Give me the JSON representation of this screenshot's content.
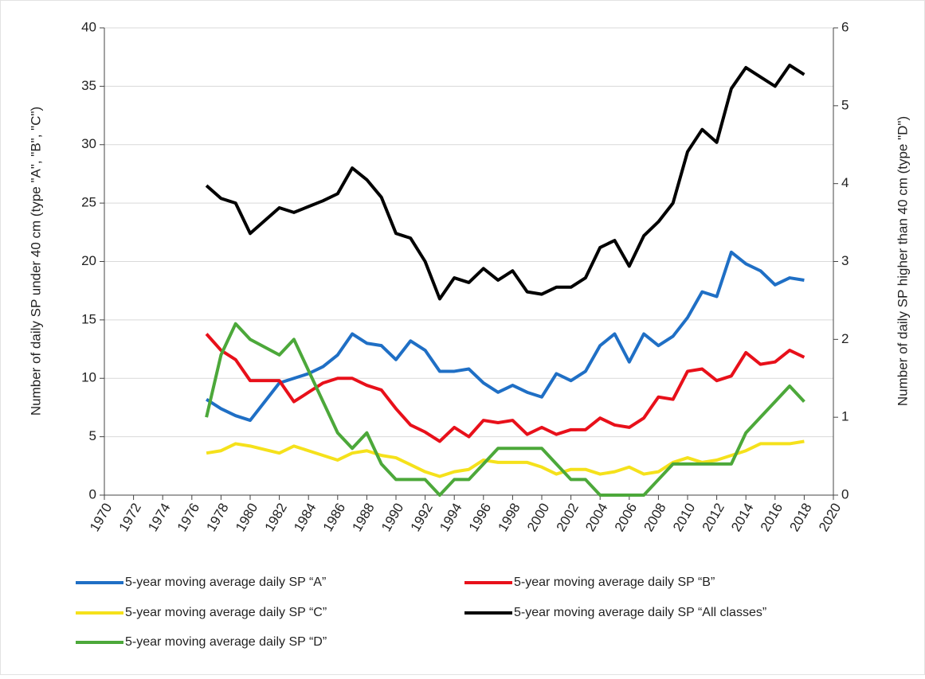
{
  "chart_data": {
    "type": "line",
    "y_label": "Number of daily SP under 40 cm (type \"A\", \"B\", \"C\")",
    "y2_label": "Number of daily SP higher than 40 cm (type \"D\")",
    "x": [
      1977,
      1978,
      1979,
      1980,
      1981,
      1982,
      1983,
      1984,
      1985,
      1986,
      1987,
      1988,
      1989,
      1990,
      1991,
      1992,
      1993,
      1994,
      1995,
      1996,
      1997,
      1998,
      1999,
      2000,
      2001,
      2002,
      2003,
      2004,
      2005,
      2006,
      2007,
      2008,
      2009,
      2010,
      2011,
      2012,
      2013,
      2014,
      2015,
      2016,
      2017,
      2018
    ],
    "xlim": [
      1970,
      2020
    ],
    "xticks": [
      1970,
      1972,
      1974,
      1976,
      1978,
      1980,
      1982,
      1984,
      1986,
      1988,
      1990,
      1992,
      1994,
      1996,
      1998,
      2000,
      2002,
      2004,
      2006,
      2008,
      2010,
      2012,
      2014,
      2016,
      2018,
      2020
    ],
    "ylim": [
      0,
      40
    ],
    "yticks": [
      0,
      5,
      10,
      15,
      20,
      25,
      30,
      35,
      40
    ],
    "y2lim": [
      0,
      6
    ],
    "y2ticks": [
      0,
      1,
      2,
      3,
      4,
      5,
      6
    ],
    "grid": true,
    "series": [
      {
        "name": "5-year moving average daily SP “A”",
        "color": "#1f6fc5",
        "values": [
          8.2,
          7.4,
          6.8,
          6.4,
          8,
          9.6,
          10,
          10.4,
          11,
          12,
          13.8,
          13,
          12.8,
          11.6,
          13.2,
          12.4,
          10.6,
          10.6,
          10.8,
          9.6,
          8.8,
          9.4,
          8.8,
          8.4,
          10.4,
          9.8,
          10.6,
          12.8,
          13.8,
          11.4,
          13.8,
          12.8,
          13.6,
          15.2,
          17.4,
          17,
          20.8,
          19.8,
          19.2,
          18,
          18.6,
          18.4
        ]
      },
      {
        "name": "5-year moving average daily SP “B”",
        "color": "#e8101a",
        "values": [
          13.8,
          12.4,
          11.6,
          9.8,
          9.8,
          9.8,
          8,
          8.8,
          9.6,
          10,
          10,
          9.4,
          9,
          7.4,
          6,
          5.4,
          4.6,
          5.8,
          5,
          6.4,
          6.2,
          6.4,
          5.2,
          5.8,
          5.2,
          5.6,
          5.6,
          6.6,
          6,
          5.8,
          6.6,
          8.4,
          8.2,
          10.6,
          10.8,
          9.8,
          10.2,
          12.2,
          11.2,
          11.4,
          12.4,
          11.8
        ]
      },
      {
        "name": "5-year moving average daily SP “C”",
        "color": "#f5e11b",
        "values": [
          3.6,
          3.8,
          4.4,
          4.2,
          3.9,
          3.6,
          4.2,
          3.8,
          3.4,
          3,
          3.6,
          3.8,
          3.4,
          3.2,
          2.6,
          2,
          1.6,
          2,
          2.2,
          3,
          2.8,
          2.8,
          2.8,
          2.4,
          1.8,
          2.2,
          2.2,
          1.8,
          2,
          2.4,
          1.8,
          2,
          2.8,
          3.2,
          2.8,
          3,
          3.4,
          3.8,
          4.4,
          4.4,
          4.4,
          4.6
        ]
      },
      {
        "name": "5-year moving average daily SP “All classes”",
        "color": "#000000",
        "values": [
          26.5,
          25.4,
          25,
          22.4,
          23.5,
          24.6,
          24.2,
          24.7,
          25.2,
          25.8,
          28,
          27,
          25.5,
          22.4,
          22,
          20,
          16.8,
          18.6,
          18.2,
          19.4,
          18.4,
          19.2,
          17.4,
          17.2,
          17.8,
          17.8,
          18.6,
          21.2,
          21.8,
          19.6,
          22.2,
          23.4,
          25,
          29.4,
          31.3,
          30.2,
          34.8,
          36.6,
          35.8,
          35,
          36.8,
          36
        ]
      },
      {
        "name": "5-year moving average daily SP “D”",
        "color": "#4ca83a",
        "axis": "y2",
        "values": [
          1.0,
          1.8,
          2.2,
          2.0,
          1.9,
          1.8,
          2.0,
          1.6,
          1.2,
          0.8,
          0.6,
          0.8,
          0.4,
          0.2,
          0.2,
          0.2,
          0,
          0.2,
          0.2,
          0.4,
          0.6,
          0.6,
          0.6,
          0.6,
          0.4,
          0.2,
          0.2,
          0,
          0,
          0,
          0,
          0.2,
          0.4,
          0.4,
          0.4,
          0.4,
          0.4,
          0.8,
          1.0,
          1.2,
          1.4,
          1.2
        ]
      }
    ]
  }
}
